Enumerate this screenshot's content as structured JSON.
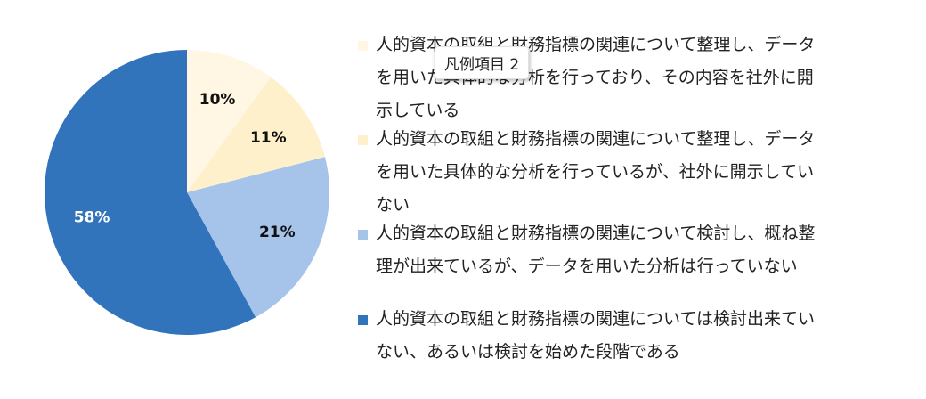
{
  "chart_data": {
    "type": "pie",
    "slices": [
      {
        "label": "人的資本の取組と財務指標の関連について整理し、データを用いた具体的な分析を行っており、その内容を社外に開示している",
        "value": 10,
        "display": "10%",
        "color": "#fff6e3",
        "label_color": "#111111"
      },
      {
        "label": "人的資本の取組と財務指標の関連について整理し、データを用いた具体的な分析を行っているが、社外に開示していない",
        "value": 11,
        "display": "11%",
        "color": "#fff0cc",
        "label_color": "#111111"
      },
      {
        "label": "人的資本の取組と財務指標の関連について検討し、概ね整理が出来ているが、データを用いた分析は行っていない",
        "value": 21,
        "display": "21%",
        "color": "#a6c4ea",
        "label_color": "#111111"
      },
      {
        "label": "人的資本の取組と財務指標の関連については検討出来ていない、あるいは検討を始めた段階である",
        "value": 58,
        "display": "58%",
        "color": "#3274bb",
        "label_color": "#ffffff"
      }
    ],
    "legend": {
      "placement": "right",
      "items": [
        "人的資本の取組と財務指標の関連について整理し、データ\nを用いた具体的な分析を行っており、その内容を社外に開\n示している",
        "人的資本の取組と財務指標の関連について整理し、データ\nを用いた具体的な分析を行っているが、社外に開示してい\nない",
        "人的資本の取組と財務指標の関連について検討し、概ね整\n理が出来ているが、データを用いた分析は行っていない",
        "人的資本の取組と財務指標の関連については検討出来てい\nない、あるいは検討を始めた段階である"
      ]
    },
    "tooltip": "凡例項目 2"
  }
}
